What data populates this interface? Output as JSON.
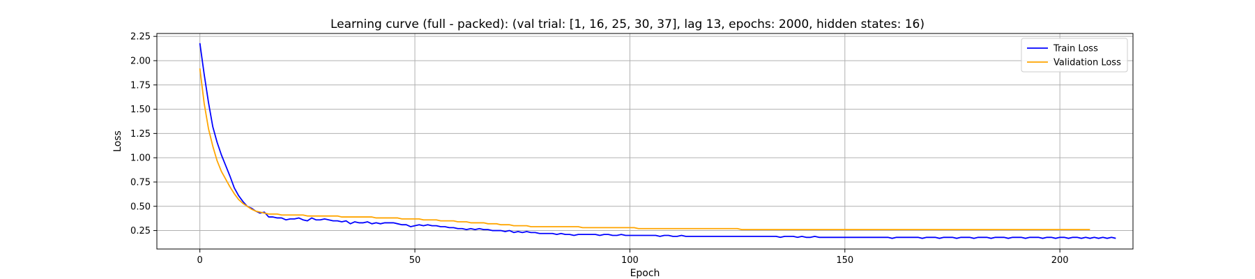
{
  "chart_data": {
    "type": "line",
    "title": "Learning curve (full - packed): (val trial: [1, 16, 25, 30, 37], lag 13, epochs: 2000, hidden states: 16)",
    "xlabel": "Epoch",
    "ylabel": "Loss",
    "xlim": [
      -10,
      217
    ],
    "ylim": [
      0.06,
      2.28
    ],
    "x_ticks": [
      0,
      50,
      100,
      150,
      200
    ],
    "y_ticks": [
      0.25,
      0.5,
      0.75,
      1.0,
      1.25,
      1.5,
      1.75,
      2.0,
      2.25
    ],
    "x_tick_labels": [
      "0",
      "50",
      "100",
      "150",
      "200"
    ],
    "y_tick_labels": [
      "0.25",
      "0.50",
      "0.75",
      "1.00",
      "1.25",
      "1.50",
      "1.75",
      "2.00",
      "2.25"
    ],
    "grid": true,
    "legend_position": "top-right",
    "series": [
      {
        "name": "Train Loss",
        "color": "#0000ff",
        "x_start": 0,
        "x_step": 1,
        "values": [
          2.18,
          1.86,
          1.57,
          1.32,
          1.16,
          1.03,
          0.92,
          0.81,
          0.69,
          0.61,
          0.55,
          0.5,
          0.48,
          0.45,
          0.43,
          0.44,
          0.39,
          0.39,
          0.38,
          0.38,
          0.36,
          0.37,
          0.37,
          0.38,
          0.36,
          0.35,
          0.38,
          0.36,
          0.36,
          0.37,
          0.36,
          0.35,
          0.35,
          0.34,
          0.35,
          0.32,
          0.34,
          0.33,
          0.33,
          0.34,
          0.32,
          0.33,
          0.32,
          0.33,
          0.33,
          0.33,
          0.32,
          0.31,
          0.31,
          0.29,
          0.3,
          0.31,
          0.3,
          0.31,
          0.3,
          0.3,
          0.29,
          0.29,
          0.28,
          0.28,
          0.27,
          0.27,
          0.26,
          0.27,
          0.26,
          0.27,
          0.26,
          0.26,
          0.25,
          0.25,
          0.25,
          0.24,
          0.25,
          0.23,
          0.24,
          0.23,
          0.24,
          0.23,
          0.23,
          0.22,
          0.22,
          0.22,
          0.22,
          0.21,
          0.22,
          0.21,
          0.21,
          0.2,
          0.21,
          0.21,
          0.21,
          0.21,
          0.21,
          0.2,
          0.21,
          0.21,
          0.2,
          0.2,
          0.21,
          0.2,
          0.2,
          0.2,
          0.2,
          0.2,
          0.2,
          0.2,
          0.2,
          0.19,
          0.2,
          0.2,
          0.19,
          0.19,
          0.2,
          0.19,
          0.19,
          0.19,
          0.19,
          0.19,
          0.19,
          0.19,
          0.19,
          0.19,
          0.19,
          0.19,
          0.19,
          0.19,
          0.19,
          0.19,
          0.19,
          0.19,
          0.19,
          0.19,
          0.19,
          0.19,
          0.19,
          0.18,
          0.19,
          0.19,
          0.19,
          0.18,
          0.19,
          0.18,
          0.18,
          0.19,
          0.18,
          0.18,
          0.18,
          0.18,
          0.18,
          0.18,
          0.18,
          0.18,
          0.18,
          0.18,
          0.18,
          0.18,
          0.18,
          0.18,
          0.18,
          0.18,
          0.18,
          0.17,
          0.18,
          0.18,
          0.18,
          0.18,
          0.18,
          0.18,
          0.17,
          0.18,
          0.18,
          0.18,
          0.17,
          0.18,
          0.18,
          0.18,
          0.17,
          0.18,
          0.18,
          0.18,
          0.17,
          0.18,
          0.18,
          0.18,
          0.17,
          0.18,
          0.18,
          0.18,
          0.17,
          0.18,
          0.18,
          0.18,
          0.17,
          0.18,
          0.18,
          0.18,
          0.17,
          0.18,
          0.18,
          0.17,
          0.18,
          0.18,
          0.17,
          0.18,
          0.18,
          0.17,
          0.18,
          0.17,
          0.18,
          0.17,
          0.18,
          0.17,
          0.18,
          0.17
        ]
      },
      {
        "name": "Validation Loss",
        "color": "#ffa500",
        "x_start": 0,
        "x_step": 1,
        "values": [
          1.92,
          1.56,
          1.3,
          1.12,
          0.97,
          0.86,
          0.78,
          0.7,
          0.63,
          0.57,
          0.53,
          0.5,
          0.47,
          0.45,
          0.44,
          0.43,
          0.42,
          0.42,
          0.42,
          0.41,
          0.41,
          0.41,
          0.41,
          0.41,
          0.41,
          0.4,
          0.4,
          0.4,
          0.4,
          0.4,
          0.4,
          0.4,
          0.4,
          0.39,
          0.39,
          0.39,
          0.39,
          0.39,
          0.39,
          0.39,
          0.39,
          0.38,
          0.38,
          0.38,
          0.38,
          0.38,
          0.38,
          0.37,
          0.37,
          0.37,
          0.37,
          0.37,
          0.36,
          0.36,
          0.36,
          0.36,
          0.35,
          0.35,
          0.35,
          0.35,
          0.34,
          0.34,
          0.34,
          0.33,
          0.33,
          0.33,
          0.33,
          0.32,
          0.32,
          0.32,
          0.31,
          0.31,
          0.31,
          0.3,
          0.3,
          0.3,
          0.3,
          0.29,
          0.29,
          0.29,
          0.29,
          0.29,
          0.29,
          0.29,
          0.29,
          0.29,
          0.29,
          0.29,
          0.29,
          0.28,
          0.28,
          0.28,
          0.28,
          0.28,
          0.28,
          0.28,
          0.28,
          0.28,
          0.28,
          0.28,
          0.28,
          0.28,
          0.27,
          0.27,
          0.27,
          0.27,
          0.27,
          0.27,
          0.27,
          0.27,
          0.27,
          0.27,
          0.27,
          0.27,
          0.27,
          0.27,
          0.27,
          0.27,
          0.27,
          0.27,
          0.27,
          0.27,
          0.27,
          0.27,
          0.27,
          0.27,
          0.26,
          0.26,
          0.26,
          0.26,
          0.26,
          0.26,
          0.26,
          0.26,
          0.26,
          0.26,
          0.26,
          0.26,
          0.26,
          0.26,
          0.26,
          0.26,
          0.26,
          0.26,
          0.26,
          0.26,
          0.26,
          0.26,
          0.26,
          0.26,
          0.26,
          0.26,
          0.26,
          0.26,
          0.26,
          0.26,
          0.26,
          0.26,
          0.26,
          0.26,
          0.26,
          0.26,
          0.26,
          0.26,
          0.26,
          0.26,
          0.26,
          0.26,
          0.26,
          0.26,
          0.26,
          0.26,
          0.26,
          0.26,
          0.26,
          0.26,
          0.26,
          0.26,
          0.26,
          0.26,
          0.26,
          0.26,
          0.26,
          0.26,
          0.26,
          0.26,
          0.26,
          0.26,
          0.26,
          0.26,
          0.26,
          0.26,
          0.26,
          0.26,
          0.26,
          0.26,
          0.26,
          0.26,
          0.26,
          0.26,
          0.26,
          0.26,
          0.26,
          0.26,
          0.26,
          0.26,
          0.26,
          0.26
        ]
      }
    ]
  }
}
